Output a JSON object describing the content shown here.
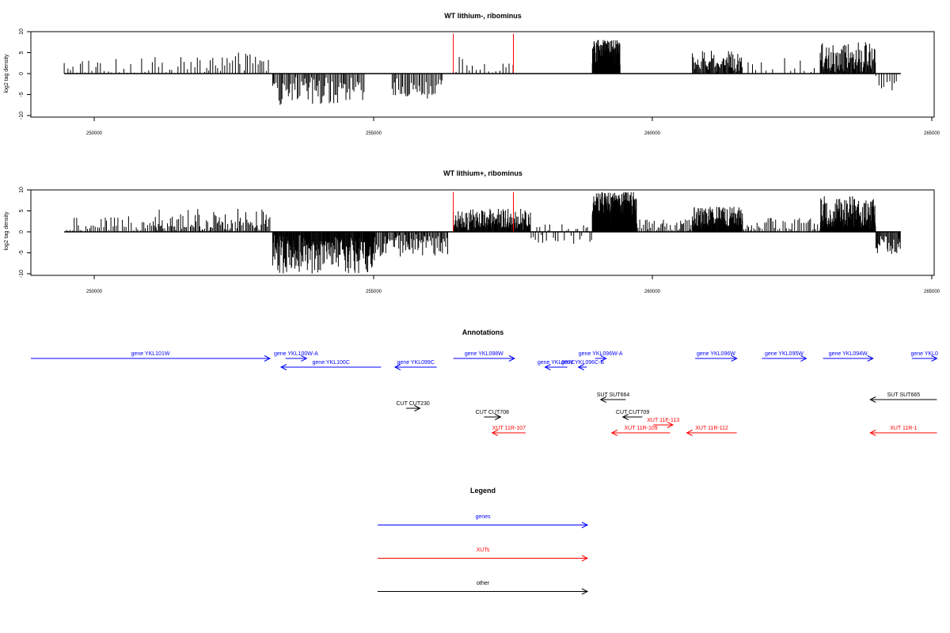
{
  "chart_data": [
    {
      "type": "bar",
      "title": "WT lithium-, ribominus",
      "ylabel": "log2 tag density",
      "xlim": [
        248800,
        265050
      ],
      "ylim": [
        -11,
        10
      ],
      "x_ticks": [
        "250000",
        "255000",
        "260000",
        "265000"
      ],
      "y_ticks": [
        "10",
        "5",
        "0",
        "-5",
        "-10"
      ],
      "baseline_range": [
        249400,
        264450
      ],
      "highlights_x": [
        256400,
        257480
      ],
      "highlight_color": "#ff0000",
      "highlight_height": 9.5,
      "segments": [
        {
          "start": 249400,
          "end": 250000,
          "min": 0,
          "max": 3.5,
          "step": 55
        },
        {
          "start": 250000,
          "end": 252000,
          "min": 0,
          "max": 4,
          "step": 60
        },
        {
          "start": 252000,
          "end": 253100,
          "min": 0,
          "max": 5,
          "step": 40
        },
        {
          "start": 253150,
          "end": 254800,
          "min": -7.5,
          "max": -2,
          "step": 22
        },
        {
          "start": 255300,
          "end": 256200,
          "min": -6,
          "max": -2,
          "step": 25
        },
        {
          "start": 256450,
          "end": 257600,
          "min": 0,
          "max": 4,
          "step": 60
        },
        {
          "start": 258900,
          "end": 259400,
          "min": 4,
          "max": 8,
          "step": 4
        },
        {
          "start": 260700,
          "end": 261600,
          "min": 1,
          "max": 5.5,
          "step": 14
        },
        {
          "start": 261600,
          "end": 262900,
          "min": 0,
          "max": 4,
          "step": 90
        },
        {
          "start": 263000,
          "end": 264000,
          "min": 1,
          "max": 7.5,
          "step": 12
        },
        {
          "start": 264000,
          "end": 264400,
          "min": -4,
          "max": -1,
          "step": 45
        }
      ]
    },
    {
      "type": "bar",
      "title": "WT lithium+, ribominus",
      "ylabel": "log2 tag density",
      "xlim": [
        248800,
        265050
      ],
      "ylim": [
        -11,
        10
      ],
      "x_ticks": [
        "250000",
        "255000",
        "260000",
        "265000"
      ],
      "y_ticks": [
        "10",
        "5",
        "0",
        "-5",
        "-10"
      ],
      "baseline_range": [
        249400,
        264450
      ],
      "highlights_x": [
        256400,
        257480
      ],
      "highlight_color": "#ff0000",
      "highlight_height": 9.5,
      "segments": [
        {
          "start": 249400,
          "end": 251000,
          "min": 0,
          "max": 4,
          "step": 35
        },
        {
          "start": 251000,
          "end": 253100,
          "min": 0,
          "max": 5.5,
          "step": 22
        },
        {
          "start": 253150,
          "end": 255000,
          "min": -10,
          "max": -2,
          "step": 10
        },
        {
          "start": 255000,
          "end": 256300,
          "min": -6,
          "max": -1,
          "step": 18
        },
        {
          "start": 256400,
          "end": 257800,
          "min": 1,
          "max": 5.5,
          "step": 10
        },
        {
          "start": 257800,
          "end": 258900,
          "min": -3,
          "max": 2,
          "step": 35
        },
        {
          "start": 258900,
          "end": 259700,
          "min": 4,
          "max": 9.5,
          "step": 4
        },
        {
          "start": 259700,
          "end": 260700,
          "min": 0,
          "max": 3,
          "step": 25
        },
        {
          "start": 260700,
          "end": 261600,
          "min": 1,
          "max": 6,
          "step": 6
        },
        {
          "start": 261600,
          "end": 263000,
          "min": 0,
          "max": 3.5,
          "step": 30
        },
        {
          "start": 263000,
          "end": 264000,
          "min": 1,
          "max": 8.5,
          "step": 6
        },
        {
          "start": 264000,
          "end": 264450,
          "min": -5.5,
          "max": -1,
          "step": 15
        }
      ]
    }
  ],
  "annotations": {
    "title": "Annotations",
    "features": [
      {
        "label": "gene YKL101W",
        "type": "gene",
        "color": "#0000ff",
        "start": 248800,
        "end": 253100,
        "strand": "+",
        "row": 0
      },
      {
        "label": "gene YKL100W-A",
        "type": "gene",
        "color": "#0000ff",
        "start": 253380,
        "end": 253760,
        "strand": "+",
        "row": 0
      },
      {
        "label": "gene YKL100C",
        "type": "gene",
        "color": "#0000ff",
        "start": 253300,
        "end": 255100,
        "strand": "-",
        "row": 1
      },
      {
        "label": "gene YKL099C",
        "type": "gene",
        "color": "#0000ff",
        "start": 255350,
        "end": 256100,
        "strand": "-",
        "row": 1
      },
      {
        "label": "gene YKL098W",
        "type": "gene",
        "color": "#0000ff",
        "start": 256400,
        "end": 257500,
        "strand": "+",
        "row": 0
      },
      {
        "label": "gene YKL097C",
        "type": "gene",
        "color": "#0000ff",
        "start": 258050,
        "end": 258450,
        "strand": "-",
        "row": 1
      },
      {
        "label": "gene YKL096W-A",
        "type": "gene",
        "color": "#0000ff",
        "start": 258950,
        "end": 259150,
        "strand": "+",
        "row": 0
      },
      {
        "label": "gene YKL096C-B",
        "type": "gene",
        "color": "#0000ff",
        "start": 258650,
        "end": 258800,
        "strand": "-",
        "row": 1
      },
      {
        "label": "gene YKL096W",
        "type": "gene",
        "color": "#0000ff",
        "start": 260750,
        "end": 261500,
        "strand": "+",
        "row": 0
      },
      {
        "label": "gene YKL095W",
        "type": "gene",
        "color": "#0000ff",
        "start": 261950,
        "end": 262750,
        "strand": "+",
        "row": 0
      },
      {
        "label": "gene YKL094W",
        "type": "gene",
        "color": "#0000ff",
        "start": 263050,
        "end": 263950,
        "strand": "+",
        "row": 0
      },
      {
        "label": "gene YKL0",
        "type": "gene",
        "color": "#0000ff",
        "start": 264650,
        "end": 265100,
        "strand": "+",
        "row": 0
      },
      {
        "label": "SUT SUT664",
        "type": "other",
        "color": "#000000",
        "start": 259050,
        "end": 259500,
        "strand": "-",
        "row": 3
      },
      {
        "label": "SUT SUT665",
        "type": "other",
        "color": "#000000",
        "start": 263900,
        "end": 265100,
        "strand": "-",
        "row": 3
      },
      {
        "label": "CUT CUT230",
        "type": "other",
        "color": "#000000",
        "start": 255550,
        "end": 255800,
        "strand": "+",
        "row": 4
      },
      {
        "label": "CUT CUT708",
        "type": "other",
        "color": "#000000",
        "start": 256950,
        "end": 257250,
        "strand": "+",
        "row": 5
      },
      {
        "label": "CUT CUT709",
        "type": "other",
        "color": "#000000",
        "start": 259450,
        "end": 259800,
        "strand": "-",
        "row": 5
      },
      {
        "label": "XUT 11F-113",
        "type": "xut",
        "color": "#ff0000",
        "start": 260000,
        "end": 260350,
        "strand": "+",
        "row": 6
      },
      {
        "label": "XUT 11R-107",
        "type": "xut",
        "color": "#ff0000",
        "start": 257100,
        "end": 257700,
        "strand": "-",
        "row": 7
      },
      {
        "label": "XUT 11R-109",
        "type": "xut",
        "color": "#ff0000",
        "start": 259250,
        "end": 260300,
        "strand": "-",
        "row": 7
      },
      {
        "label": "XUT 11R-112",
        "type": "xut",
        "color": "#ff0000",
        "start": 260600,
        "end": 261500,
        "strand": "-",
        "row": 7
      },
      {
        "label": "XUT 11R-1",
        "type": "xut",
        "color": "#ff0000",
        "start": 263900,
        "end": 265100,
        "strand": "-",
        "row": 7
      }
    ]
  },
  "legend": {
    "title": "Legend",
    "items": [
      {
        "label": "genes",
        "color": "#0000ff"
      },
      {
        "label": "XUTs",
        "color": "#ff0000"
      },
      {
        "label": "other",
        "color": "#000000"
      }
    ]
  }
}
